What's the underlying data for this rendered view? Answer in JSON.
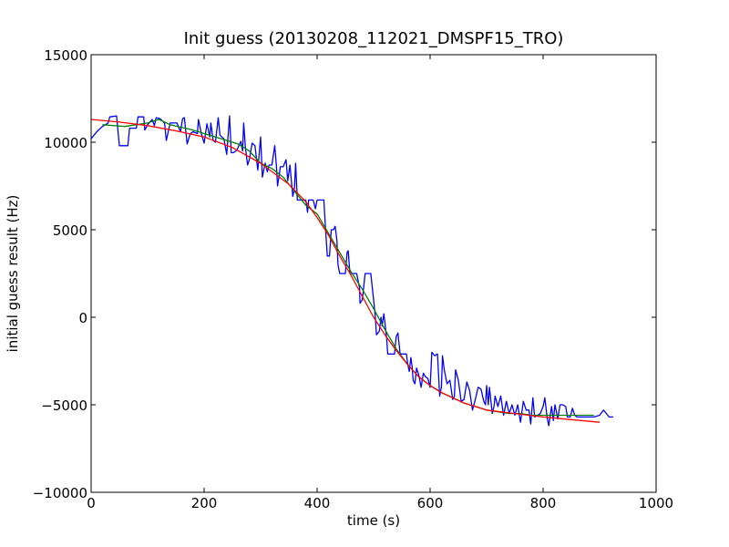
{
  "chart_data": {
    "type": "line",
    "title": "Init guess (20130208_112021_DMSPF15_TRO)",
    "xlabel": "time (s)",
    "ylabel": "initial guess result (Hz)",
    "xlim": [
      0,
      1000
    ],
    "ylim": [
      -10000,
      15000
    ],
    "x_ticks": [
      0,
      200,
      400,
      600,
      800,
      1000
    ],
    "y_ticks": [
      -10000,
      -5000,
      0,
      5000,
      10000,
      15000
    ],
    "grid": false,
    "legend": "none",
    "series": [
      {
        "color": "#0000ff",
        "points": [
          [
            0,
            10200
          ],
          [
            10,
            10600
          ],
          [
            20,
            10900
          ],
          [
            30,
            11100
          ],
          [
            33,
            11450
          ],
          [
            45,
            11500
          ],
          [
            50,
            9800
          ],
          [
            65,
            9800
          ],
          [
            68,
            10800
          ],
          [
            80,
            10800
          ],
          [
            83,
            11450
          ],
          [
            93,
            11450
          ],
          [
            95,
            10700
          ],
          [
            100,
            11000
          ],
          [
            108,
            11300
          ],
          [
            112,
            10950
          ],
          [
            115,
            11400
          ],
          [
            122,
            11350
          ],
          [
            130,
            11100
          ],
          [
            133,
            10100
          ],
          [
            140,
            11100
          ],
          [
            152,
            11100
          ],
          [
            158,
            10600
          ],
          [
            162,
            11350
          ],
          [
            165,
            11400
          ],
          [
            170,
            9900
          ],
          [
            175,
            10450
          ],
          [
            180,
            10600
          ],
          [
            188,
            10500
          ],
          [
            190,
            11300
          ],
          [
            195,
            10500
          ],
          [
            200,
            9950
          ],
          [
            205,
            11050
          ],
          [
            210,
            10300
          ],
          [
            212,
            11100
          ],
          [
            216,
            10100
          ],
          [
            220,
            10000
          ],
          [
            225,
            11400
          ],
          [
            228,
            10400
          ],
          [
            235,
            10200
          ],
          [
            240,
            9300
          ],
          [
            245,
            11500
          ],
          [
            248,
            9400
          ],
          [
            252,
            9400
          ],
          [
            258,
            9550
          ],
          [
            265,
            10050
          ],
          [
            268,
            9500
          ],
          [
            270,
            11100
          ],
          [
            273,
            9700
          ],
          [
            277,
            8700
          ],
          [
            280,
            9000
          ],
          [
            285,
            9950
          ],
          [
            290,
            9800
          ],
          [
            295,
            8400
          ],
          [
            300,
            10300
          ],
          [
            303,
            8000
          ],
          [
            308,
            8800
          ],
          [
            312,
            8300
          ],
          [
            315,
            8700
          ],
          [
            320,
            8700
          ],
          [
            325,
            9800
          ],
          [
            328,
            8600
          ],
          [
            330,
            7500
          ],
          [
            335,
            8600
          ],
          [
            340,
            8600
          ],
          [
            345,
            9000
          ],
          [
            348,
            7800
          ],
          [
            352,
            8700
          ],
          [
            357,
            6900
          ],
          [
            360,
            7400
          ],
          [
            362,
            8800
          ],
          [
            365,
            6700
          ],
          [
            370,
            6700
          ],
          [
            380,
            6700
          ],
          [
            383,
            6000
          ],
          [
            385,
            6700
          ],
          [
            393,
            6700
          ],
          [
            397,
            6200
          ],
          [
            400,
            6700
          ],
          [
            412,
            6700
          ],
          [
            415,
            5000
          ],
          [
            418,
            3500
          ],
          [
            422,
            3500
          ],
          [
            425,
            5000
          ],
          [
            429,
            5000
          ],
          [
            432,
            5200
          ],
          [
            435,
            4400
          ],
          [
            437,
            3000
          ],
          [
            440,
            2500
          ],
          [
            450,
            2500
          ],
          [
            453,
            3700
          ],
          [
            455,
            3800
          ],
          [
            458,
            2500
          ],
          [
            470,
            2500
          ],
          [
            475,
            1700
          ],
          [
            476,
            800
          ],
          [
            480,
            1000
          ],
          [
            485,
            2500
          ],
          [
            495,
            2500
          ],
          [
            500,
            1000
          ],
          [
            503,
            0
          ],
          [
            505,
            -1000
          ],
          [
            510,
            -800
          ],
          [
            513,
            0
          ],
          [
            515,
            -500
          ],
          [
            518,
            200
          ],
          [
            520,
            -300
          ],
          [
            523,
            -1200
          ],
          [
            525,
            -2100
          ],
          [
            537,
            -2100
          ],
          [
            540,
            -1100
          ],
          [
            543,
            -900
          ],
          [
            547,
            -2100
          ],
          [
            558,
            -2100
          ],
          [
            560,
            -2600
          ],
          [
            563,
            -3100
          ],
          [
            566,
            -2300
          ],
          [
            568,
            -2800
          ],
          [
            570,
            -3600
          ],
          [
            573,
            -3800
          ],
          [
            576,
            -2900
          ],
          [
            580,
            -3300
          ],
          [
            584,
            -4000
          ],
          [
            588,
            -3200
          ],
          [
            592,
            -3400
          ],
          [
            596,
            -3500
          ],
          [
            600,
            -4000
          ],
          [
            603,
            -2000
          ],
          [
            608,
            -2200
          ],
          [
            613,
            -2100
          ],
          [
            617,
            -4500
          ],
          [
            620,
            -4000
          ],
          [
            622,
            -2200
          ],
          [
            625,
            -3000
          ],
          [
            630,
            -3800
          ],
          [
            635,
            -3600
          ],
          [
            640,
            -4700
          ],
          [
            643,
            -4500
          ],
          [
            645,
            -3000
          ],
          [
            650,
            -3600
          ],
          [
            655,
            -4800
          ],
          [
            660,
            -4700
          ],
          [
            665,
            -3700
          ],
          [
            670,
            -4200
          ],
          [
            675,
            -5300
          ],
          [
            680,
            -4700
          ],
          [
            685,
            -4000
          ],
          [
            690,
            -4100
          ],
          [
            695,
            -4800
          ],
          [
            698,
            -5000
          ],
          [
            700,
            -3900
          ],
          [
            703,
            -5000
          ],
          [
            705,
            -4000
          ],
          [
            710,
            -5500
          ],
          [
            713,
            -5100
          ],
          [
            715,
            -4500
          ],
          [
            720,
            -5100
          ],
          [
            725,
            -4500
          ],
          [
            730,
            -5600
          ],
          [
            735,
            -4800
          ],
          [
            740,
            -5500
          ],
          [
            745,
            -5000
          ],
          [
            750,
            -5600
          ],
          [
            755,
            -5000
          ],
          [
            760,
            -6000
          ],
          [
            765,
            -4800
          ],
          [
            770,
            -5300
          ],
          [
            775,
            -5300
          ],
          [
            778,
            -6100
          ],
          [
            782,
            -4600
          ],
          [
            785,
            -5700
          ],
          [
            790,
            -5600
          ],
          [
            795,
            -5500
          ],
          [
            800,
            -5100
          ],
          [
            803,
            -4600
          ],
          [
            807,
            -5700
          ],
          [
            810,
            -6200
          ],
          [
            815,
            -5100
          ],
          [
            818,
            -5900
          ],
          [
            821,
            -5000
          ],
          [
            826,
            -5800
          ],
          [
            830,
            -5000
          ],
          [
            835,
            -5000
          ],
          [
            840,
            -5100
          ],
          [
            843,
            -5700
          ],
          [
            848,
            -5700
          ],
          [
            852,
            -5200
          ],
          [
            856,
            -5600
          ],
          [
            860,
            -5700
          ],
          [
            880,
            -5700
          ],
          [
            890,
            -5700
          ],
          [
            900,
            -5600
          ],
          [
            907,
            -5300
          ],
          [
            912,
            -5500
          ],
          [
            917,
            -5700
          ],
          [
            924,
            -5700
          ]
        ]
      },
      {
        "color": "#008000",
        "points": [
          [
            20,
            11000
          ],
          [
            60,
            10900
          ],
          [
            100,
            11100
          ],
          [
            120,
            11300
          ],
          [
            140,
            11000
          ],
          [
            180,
            10700
          ],
          [
            220,
            10300
          ],
          [
            260,
            9900
          ],
          [
            280,
            9500
          ],
          [
            300,
            8800
          ],
          [
            320,
            8500
          ],
          [
            340,
            8000
          ],
          [
            360,
            7200
          ],
          [
            380,
            6400
          ],
          [
            400,
            5900
          ],
          [
            420,
            4800
          ],
          [
            440,
            3700
          ],
          [
            460,
            2600
          ],
          [
            480,
            1600
          ],
          [
            500,
            500
          ],
          [
            520,
            -700
          ],
          [
            540,
            -1800
          ],
          [
            560,
            -2700
          ],
          [
            580,
            -3400
          ],
          [
            600,
            -3900
          ],
          [
            620,
            -4300
          ],
          [
            640,
            -4600
          ],
          [
            660,
            -4900
          ],
          [
            680,
            -5100
          ],
          [
            700,
            -5300
          ],
          [
            720,
            -5400
          ],
          [
            740,
            -5500
          ],
          [
            760,
            -5500
          ],
          [
            780,
            -5600
          ],
          [
            800,
            -5600
          ],
          [
            820,
            -5600
          ],
          [
            840,
            -5600
          ],
          [
            860,
            -5600
          ],
          [
            890,
            -5600
          ]
        ]
      },
      {
        "color": "#ff0000",
        "points": [
          [
            0,
            11300
          ],
          [
            50,
            11150
          ],
          [
            100,
            10950
          ],
          [
            150,
            10650
          ],
          [
            200,
            10300
          ],
          [
            250,
            9700
          ],
          [
            300,
            8800
          ],
          [
            350,
            7600
          ],
          [
            380,
            6600
          ],
          [
            400,
            5700
          ],
          [
            420,
            4700
          ],
          [
            440,
            3500
          ],
          [
            460,
            2400
          ],
          [
            480,
            1200
          ],
          [
            500,
            0
          ],
          [
            520,
            -1000
          ],
          [
            540,
            -1900
          ],
          [
            560,
            -2700
          ],
          [
            580,
            -3400
          ],
          [
            600,
            -3900
          ],
          [
            620,
            -4300
          ],
          [
            640,
            -4600
          ],
          [
            660,
            -4900
          ],
          [
            680,
            -5100
          ],
          [
            700,
            -5300
          ],
          [
            750,
            -5500
          ],
          [
            800,
            -5700
          ],
          [
            850,
            -5850
          ],
          [
            900,
            -6000
          ]
        ]
      }
    ]
  }
}
